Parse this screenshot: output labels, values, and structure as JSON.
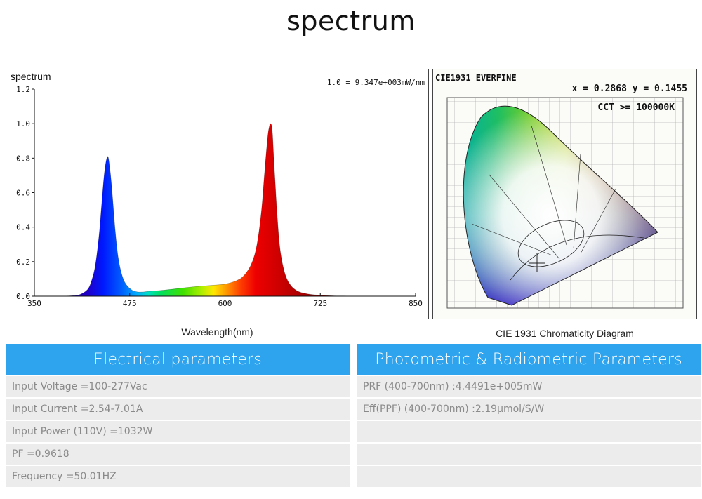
{
  "page_title": "spectrum",
  "spectrum_caption": "Wavelength(nm)",
  "cie_caption": "CIE 1931 Chromaticity Diagram",
  "chart_data": {
    "type": "area",
    "title": "spectrum",
    "scale_note": "1.0 = 9.347e+003mW/nm",
    "xlabel": "Wavelength(nm)",
    "xlim": [
      350,
      850
    ],
    "ylim": [
      0,
      1.2
    ],
    "x_ticks": [
      "350",
      "475",
      "600",
      "725",
      "850"
    ],
    "y_ticks": [
      "0.0",
      "0.2",
      "0.4",
      "0.6",
      "0.8",
      "1.0",
      "1.2"
    ],
    "x": [
      350,
      380,
      400,
      410,
      420,
      425,
      430,
      435,
      438,
      442,
      446,
      449,
      452,
      456,
      460,
      465,
      470,
      478,
      485,
      492,
      500,
      520,
      540,
      560,
      580,
      600,
      615,
      625,
      635,
      642,
      648,
      652,
      656,
      658,
      660,
      662,
      664,
      668,
      672,
      678,
      685,
      695,
      710,
      730,
      760,
      800,
      850
    ],
    "y": [
      0.0,
      0.0,
      0.003,
      0.01,
      0.04,
      0.09,
      0.18,
      0.36,
      0.52,
      0.72,
      0.81,
      0.74,
      0.6,
      0.38,
      0.22,
      0.12,
      0.07,
      0.035,
      0.025,
      0.024,
      0.028,
      0.035,
      0.045,
      0.055,
      0.062,
      0.07,
      0.09,
      0.12,
      0.19,
      0.3,
      0.5,
      0.72,
      0.92,
      0.98,
      1.0,
      0.96,
      0.8,
      0.5,
      0.28,
      0.14,
      0.07,
      0.03,
      0.012,
      0.004,
      0.001,
      0.0,
      0.0
    ],
    "grid": false,
    "legend": "none"
  },
  "cie": {
    "header": "CIE1931  EVERFINE",
    "coords": "x = 0.2868 y = 0.1455",
    "cct": "CCT >= 100000K"
  },
  "electrical": {
    "title": "Electrical parameters",
    "rows": [
      "Input Voltage =100-277Vac",
      "Input Current =2.54-7.01A",
      "Input Power (110V) =1032W",
      "PF =0.9618",
      "Frequency =50.01HZ"
    ]
  },
  "photometric": {
    "title": "Photometric & Radiometric Parameters",
    "rows": [
      "PRF (400-700nm) :4.4491e+005mW",
      "Eff(PPF) (400-700nm) :2.19μmol/S/W",
      "",
      "",
      ""
    ]
  }
}
